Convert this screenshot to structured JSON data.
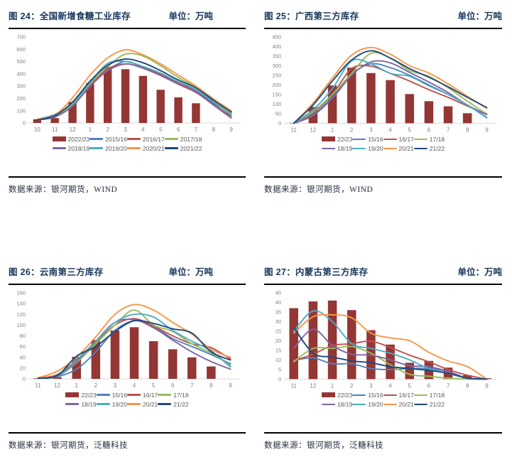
{
  "panels": [
    {
      "title": "图 24：全国新增食糖工业库存",
      "unit": "单位：万吨",
      "source": "数据来源：银河期货，WIND"
    },
    {
      "title": "图 25：广西第三方库存",
      "unit": "单位：万吨",
      "source": "数据来源：银河期货，WIND"
    },
    {
      "title": "图 26：云南第三方库存",
      "unit": "单位：万吨",
      "source": "数据来源：银河期货，泛糖科技"
    },
    {
      "title": "图 27：内蒙古第三方库存",
      "unit": "单位：万吨",
      "source": "数据来源：银河期货，泛糖科技"
    }
  ],
  "colors": {
    "title_text": "#17365D",
    "bar": "#943634",
    "axis_text": "#7f7f7f",
    "baseline": "#d9d9d9",
    "divider": "#000000"
  },
  "chart_data": [
    {
      "type": "combo",
      "title": "全国新增食糖工业库存",
      "unit": "万吨",
      "categories": [
        "10",
        "11",
        "12",
        "1",
        "2",
        "3",
        "4",
        "5",
        "6",
        "7",
        "8",
        "9"
      ],
      "ylim": [
        0,
        700
      ],
      "ytick_step": 100,
      "grid": false,
      "legend_position": "bottom",
      "series": [
        {
          "name": "2022/23",
          "kind": "bar",
          "color": "#943634",
          "values": [
            30,
            40,
            170,
            325,
            455,
            438,
            383,
            270,
            208,
            160,
            null,
            null
          ]
        },
        {
          "name": "2015/16",
          "kind": "line",
          "color": "#4F81BD",
          "values": [
            25,
            50,
            140,
            300,
            430,
            500,
            455,
            400,
            330,
            265,
            160,
            80
          ]
        },
        {
          "name": "2016/17",
          "kind": "line",
          "color": "#C0504D",
          "values": [
            25,
            50,
            145,
            310,
            440,
            480,
            450,
            395,
            325,
            255,
            150,
            55
          ]
        },
        {
          "name": "2017/18",
          "kind": "line",
          "color": "#9BBB59",
          "values": [
            25,
            55,
            150,
            320,
            460,
            560,
            545,
            465,
            370,
            290,
            180,
            75
          ]
        },
        {
          "name": "2018/19",
          "kind": "line",
          "color": "#8064A2",
          "values": [
            25,
            48,
            138,
            298,
            425,
            480,
            445,
            385,
            315,
            248,
            145,
            40
          ]
        },
        {
          "name": "2019/20",
          "kind": "line",
          "color": "#4BACC6",
          "values": [
            30,
            70,
            160,
            330,
            485,
            500,
            460,
            405,
            335,
            270,
            170,
            65
          ]
        },
        {
          "name": "2020/21",
          "kind": "line",
          "color": "#F79646",
          "values": [
            30,
            65,
            205,
            390,
            530,
            595,
            555,
            480,
            390,
            300,
            195,
            100
          ]
        },
        {
          "name": "2021/22",
          "kind": "line",
          "color": "#1F497D",
          "values": [
            25,
            60,
            170,
            340,
            470,
            520,
            490,
            425,
            350,
            285,
            185,
            90
          ]
        }
      ]
    },
    {
      "type": "combo",
      "title": "广西第三方库存",
      "unit": "万吨",
      "categories": [
        "11",
        "12",
        "1",
        "2",
        "3",
        "4",
        "5",
        "6",
        "7",
        "8",
        "9"
      ],
      "ylim": [
        0,
        450
      ],
      "ytick_step": 50,
      "grid": false,
      "legend_position": "bottom",
      "series": [
        {
          "name": "22/23",
          "kind": "bar",
          "color": "#943634",
          "values": [
            2,
            85,
            197,
            290,
            262,
            225,
            152,
            115,
            88,
            52,
            null
          ]
        },
        {
          "name": "15/16",
          "kind": "line",
          "color": "#4F81BD",
          "values": [
            0,
            45,
            135,
            255,
            310,
            290,
            250,
            200,
            150,
            95,
            30
          ]
        },
        {
          "name": "16/17",
          "kind": "line",
          "color": "#C0504D",
          "values": [
            0,
            55,
            150,
            285,
            298,
            260,
            220,
            175,
            135,
            90,
            45
          ]
        },
        {
          "name": "17/18",
          "kind": "line",
          "color": "#9BBB59",
          "values": [
            0,
            60,
            150,
            260,
            365,
            340,
            275,
            245,
            185,
            115,
            48
          ]
        },
        {
          "name": "18/19",
          "kind": "line",
          "color": "#8064A2",
          "values": [
            0,
            40,
            130,
            250,
            320,
            315,
            265,
            215,
            160,
            95,
            45
          ]
        },
        {
          "name": "19/20",
          "kind": "line",
          "color": "#4BACC6",
          "values": [
            0,
            70,
            180,
            325,
            310,
            260,
            245,
            195,
            150,
            95,
            28
          ]
        },
        {
          "name": "20/21",
          "kind": "line",
          "color": "#F79646",
          "values": [
            0,
            105,
            235,
            355,
            395,
            360,
            300,
            262,
            205,
            140,
            78
          ]
        },
        {
          "name": "21/22",
          "kind": "line",
          "color": "#1F497D",
          "values": [
            0,
            95,
            220,
            330,
            378,
            340,
            285,
            240,
            190,
            135,
            82
          ]
        }
      ]
    },
    {
      "type": "combo",
      "title": "云南第三方库存",
      "unit": "万吨",
      "categories": [
        "11",
        "12",
        "1",
        "2",
        "3",
        "4",
        "5",
        "6",
        "7",
        "8",
        "9"
      ],
      "ylim": [
        0,
        160
      ],
      "ytick_step": 20,
      "grid": false,
      "legend_position": "bottom",
      "series": [
        {
          "name": "22/23",
          "kind": "bar",
          "color": "#943634",
          "values": [
            1,
            3,
            41,
            72,
            90,
            96,
            70,
            55,
            40,
            23,
            null
          ]
        },
        {
          "name": "15/16",
          "kind": "line",
          "color": "#4F81BD",
          "values": [
            1,
            4,
            18,
            50,
            90,
            108,
            97,
            75,
            60,
            45,
            28
          ]
        },
        {
          "name": "16/17",
          "kind": "line",
          "color": "#C0504D",
          "values": [
            1,
            8,
            35,
            68,
            100,
            112,
            98,
            80,
            65,
            58,
            37
          ]
        },
        {
          "name": "17/18",
          "kind": "line",
          "color": "#9BBB59",
          "values": [
            1,
            5,
            30,
            65,
            100,
            128,
            100,
            88,
            65,
            48,
            25
          ]
        },
        {
          "name": "18/19",
          "kind": "line",
          "color": "#8064A2",
          "values": [
            1,
            5,
            32,
            70,
            105,
            110,
            95,
            72,
            50,
            32,
            18
          ]
        },
        {
          "name": "19/20",
          "kind": "line",
          "color": "#4BACC6",
          "values": [
            1,
            5,
            35,
            70,
            105,
            120,
            115,
            90,
            70,
            52,
            22
          ]
        },
        {
          "name": "20/21",
          "kind": "line",
          "color": "#F79646",
          "values": [
            2,
            14,
            40,
            78,
            120,
            138,
            128,
            105,
            83,
            55,
            40
          ]
        },
        {
          "name": "21/22",
          "kind": "line",
          "color": "#1F497D",
          "values": [
            1,
            6,
            42,
            60,
            88,
            108,
            103,
            93,
            85,
            50,
            35
          ]
        }
      ]
    },
    {
      "type": "combo",
      "title": "内蒙古第三方库存",
      "unit": "万吨",
      "categories": [
        "11",
        "12",
        "1",
        "2",
        "3",
        "4",
        "5",
        "6",
        "7",
        "8",
        "9"
      ],
      "ylim": [
        0,
        45
      ],
      "ytick_step": 5,
      "grid": false,
      "legend_position": "bottom",
      "series": [
        {
          "name": "22/23",
          "kind": "bar",
          "color": "#943634",
          "values": [
            37,
            40.5,
            41,
            36,
            25.5,
            18,
            8.5,
            9.5,
            6,
            2,
            0.5
          ]
        },
        {
          "name": "15/16",
          "kind": "line",
          "color": "#4F81BD",
          "values": [
            9.8,
            11,
            8,
            8,
            5.5,
            5,
            5.5,
            5.5,
            4,
            0.5,
            0
          ]
        },
        {
          "name": "16/17",
          "kind": "line",
          "color": "#C0504D",
          "values": [
            9.5,
            13,
            17.5,
            18.5,
            19.8,
            16.5,
            12.5,
            9,
            5,
            2,
            0
          ]
        },
        {
          "name": "17/18",
          "kind": "line",
          "color": "#9BBB59",
          "values": [
            9,
            16,
            16,
            17,
            13.5,
            7.5,
            2.5,
            1.5,
            0.5,
            0,
            0
          ]
        },
        {
          "name": "18/19",
          "kind": "line",
          "color": "#8064A2",
          "values": [
            16,
            26,
            17.5,
            13,
            12.5,
            10,
            7,
            6.5,
            4,
            0.5,
            0
          ]
        },
        {
          "name": "19/20",
          "kind": "line",
          "color": "#4BACC6",
          "values": [
            25,
            35.5,
            30,
            18.5,
            16,
            13.5,
            10,
            5.5,
            3,
            0.5,
            0
          ]
        },
        {
          "name": "20/21",
          "kind": "line",
          "color": "#F79646",
          "values": [
            24,
            32.5,
            33.5,
            32,
            24,
            21.5,
            20,
            14,
            9.5,
            6.5,
            0
          ]
        },
        {
          "name": "21/22",
          "kind": "line",
          "color": "#1F497D",
          "values": [
            27,
            13.5,
            11.5,
            9.5,
            8.5,
            6.5,
            5.5,
            4.5,
            3,
            0.5,
            0
          ]
        }
      ]
    }
  ]
}
